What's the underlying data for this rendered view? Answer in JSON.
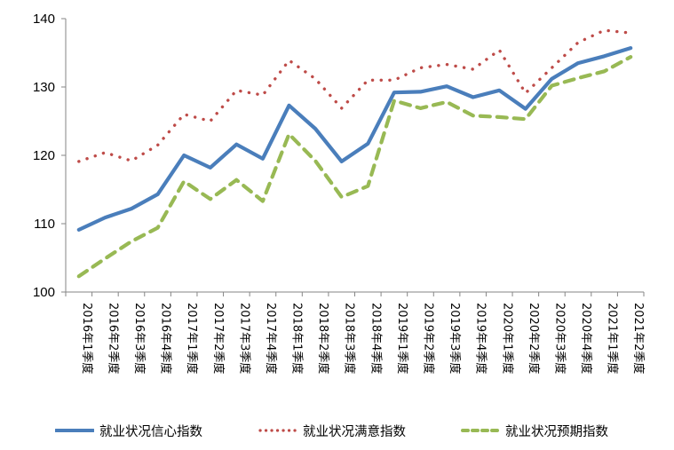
{
  "chart_data": {
    "type": "line",
    "title": "",
    "xlabel": "",
    "ylabel": "",
    "ylim": [
      100,
      140
    ],
    "yticks": [
      100,
      110,
      120,
      130,
      140
    ],
    "grid": false,
    "legend_position": "bottom",
    "categories": [
      "2016年1季度",
      "2016年2季度",
      "2016年3季度",
      "2016年4季度",
      "2017年1季度",
      "2017年2季度",
      "2017年3季度",
      "2017年4季度",
      "2018年1季度",
      "2018年2季度",
      "2018年3季度",
      "2018年4季度",
      "2019年1季度",
      "2019年2季度",
      "2019年3季度",
      "2019年4季度",
      "2020年1季度",
      "2020年2季度",
      "2020年3季度",
      "2020年4季度",
      "2021年1季度",
      "2021年2季度"
    ],
    "series": [
      {
        "name": "就业状况信心指数",
        "color": "#4a7ebb",
        "style": "solid",
        "values": [
          109.1,
          110.9,
          112.2,
          114.3,
          120.0,
          118.2,
          121.6,
          119.5,
          127.3,
          123.9,
          119.1,
          121.7,
          129.2,
          129.3,
          130.1,
          128.5,
          129.5,
          126.8,
          131.2,
          133.5,
          134.5,
          135.7
        ]
      },
      {
        "name": "就业状况满意指数",
        "color": "#be4b48",
        "style": "dotted",
        "values": [
          119.1,
          120.4,
          119.2,
          121.5,
          126.0,
          125.0,
          129.5,
          128.8,
          133.9,
          131.2,
          126.9,
          131.0,
          131.0,
          132.8,
          133.3,
          132.6,
          135.4,
          129.1,
          132.8,
          136.5,
          138.3,
          137.9
        ]
      },
      {
        "name": "就业状况预期指数",
        "color": "#98b954",
        "style": "dashed",
        "values": [
          102.3,
          104.9,
          107.4,
          109.4,
          116.2,
          113.6,
          116.4,
          113.3,
          123.1,
          119.2,
          113.9,
          115.5,
          128.0,
          126.9,
          127.8,
          125.8,
          125.6,
          125.3,
          130.2,
          131.3,
          132.3,
          134.4
        ]
      }
    ]
  },
  "legend": {
    "items": [
      {
        "label": "就业状况信心指数"
      },
      {
        "label": "就业状况满意指数"
      },
      {
        "label": "就业状况预期指数"
      }
    ]
  }
}
